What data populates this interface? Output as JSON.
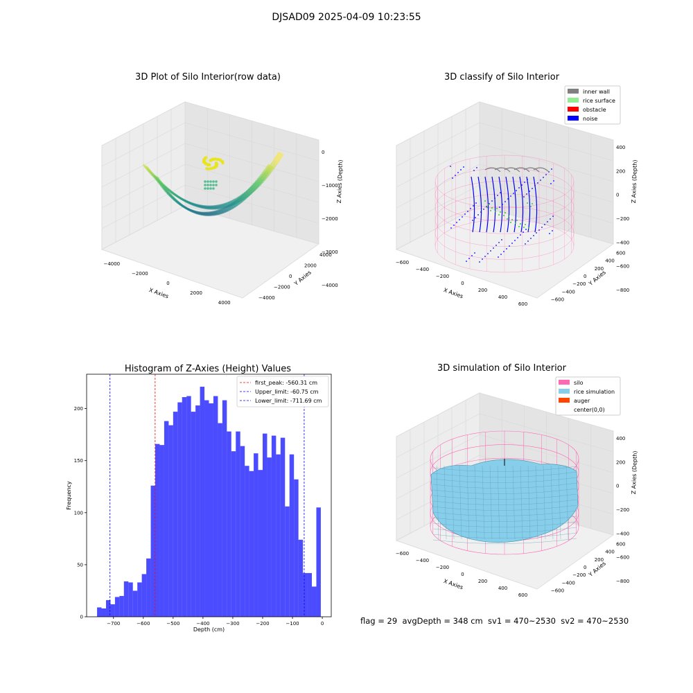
{
  "figure": {
    "suptitle": "DJSAD09 2025-04-09 10:23:55",
    "status_line": "flag = 29  avgDepth = 348 cm  sv1 = 470~2530  sv2 = 470~2530"
  },
  "panels": {
    "raw": {
      "title": "3D Plot of Silo Interior(row data)",
      "xlabel": "X Axies",
      "ylabel": "Y Axies",
      "zlabel": "Z Axies (Depth)",
      "xticks": [
        "−4000",
        "−2000",
        "0",
        "2000",
        "4000"
      ],
      "yticks": [
        "−4000",
        "−2000",
        "0",
        "2000",
        "4000"
      ],
      "zticks": [
        "0",
        "−1000",
        "−2000",
        "−3000",
        "−4000"
      ]
    },
    "classify": {
      "title": "3D classify of Silo Interior",
      "xlabel": "X Axies",
      "ylabel": "Y Axies",
      "zlabel": "Z Axies (Depth)",
      "xticks": [
        "−600",
        "−400",
        "−200",
        "0",
        "200",
        "400",
        "600"
      ],
      "yticks": [
        "−600",
        "−400",
        "−200",
        "0",
        "200",
        "400",
        "600"
      ],
      "zticks": [
        "400",
        "200",
        "0",
        "−200",
        "−400",
        "−600",
        "−800"
      ],
      "legend": [
        {
          "label": "inner wall",
          "color": "#808080"
        },
        {
          "label": "rice surface",
          "color": "#90ee90"
        },
        {
          "label": "obstacle",
          "color": "#ff0000"
        },
        {
          "label": "noise",
          "color": "#0000ff"
        }
      ]
    },
    "simulation": {
      "title": "3D simulation of Silo Interior",
      "xlabel": "X Axies",
      "ylabel": "Y Axies",
      "zlabel": "Z Axies (Depth)",
      "xticks": [
        "−600",
        "−400",
        "−200",
        "0",
        "200",
        "400",
        "600"
      ],
      "yticks": [
        "−600",
        "−400",
        "−200",
        "0",
        "200",
        "400",
        "600"
      ],
      "zticks": [
        "400",
        "200",
        "0",
        "−200",
        "−400",
        "−600",
        "−800"
      ],
      "legend": [
        {
          "label": "silo",
          "color": "#ff69b4"
        },
        {
          "label": "rice simulation",
          "color": "#87ceeb"
        },
        {
          "label": "auger",
          "color": "#ff4500"
        },
        {
          "label": "center(0,0)",
          "color": "#ffffff"
        }
      ]
    }
  },
  "chart_data": [
    {
      "type": "bar",
      "title": "Histogram of Z-Axies (Height) Values",
      "xlabel": "Depth (cm)",
      "ylabel": "Frequency",
      "xlim": [
        -790,
        30
      ],
      "ylim": [
        0,
        233
      ],
      "xticks": [
        -700,
        -600,
        -500,
        -400,
        -300,
        -200,
        -100,
        0
      ],
      "xtick_labels": [
        "−700",
        "−600",
        "−500",
        "−400",
        "−300",
        "−200",
        "−100",
        "0"
      ],
      "yticks": [
        0,
        50,
        100,
        150,
        200
      ],
      "bar_color": "#0000ff",
      "bin_edges": [
        -755,
        -740,
        -725,
        -710,
        -695,
        -680,
        -665,
        -650,
        -635,
        -620,
        -605,
        -590,
        -575,
        -560,
        -545,
        -530,
        -515,
        -500,
        -485,
        -470,
        -455,
        -440,
        -425,
        -410,
        -395,
        -380,
        -365,
        -350,
        -335,
        -320,
        -305,
        -290,
        -275,
        -260,
        -245,
        -230,
        -215,
        -200,
        -185,
        -170,
        -155,
        -140,
        -125,
        -110,
        -95,
        -80,
        -65,
        -50,
        -35,
        -20,
        -5
      ],
      "values": [
        9,
        8,
        16,
        12,
        19,
        20,
        34,
        33,
        25,
        33,
        41,
        56,
        126,
        166,
        165,
        188,
        184,
        197,
        206,
        211,
        212,
        197,
        203,
        221,
        208,
        205,
        212,
        186,
        208,
        178,
        159,
        178,
        164,
        145,
        140,
        157,
        141,
        176,
        153,
        174,
        156,
        172,
        106,
        156,
        132,
        74,
        42,
        42,
        29,
        105
      ],
      "vlines": [
        {
          "label": "first_peak: -560.31 cm",
          "x": -560.31,
          "color": "#ff0000"
        },
        {
          "label": "Upper_limit: -60.75 cm",
          "x": -60.75,
          "color": "#0000ff"
        },
        {
          "label": "Lower_limit: -711.69 cm",
          "x": -711.69,
          "color": "#0000ff"
        }
      ]
    }
  ]
}
